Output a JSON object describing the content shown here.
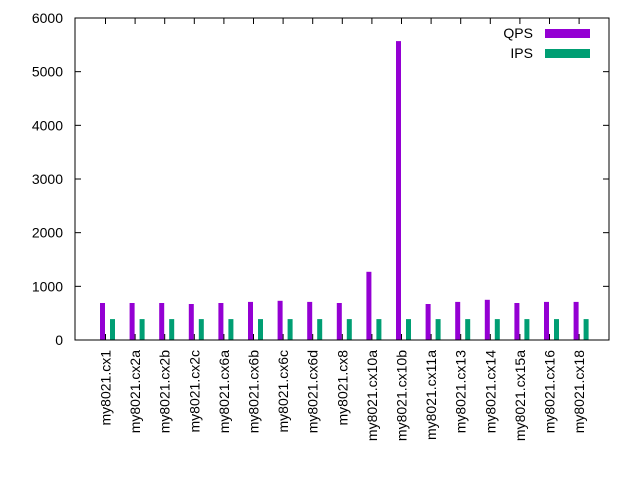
{
  "chart_data": {
    "type": "bar",
    "title": "",
    "xlabel": "",
    "ylabel": "",
    "ylim": [
      0,
      6000
    ],
    "yticks": [
      0,
      1000,
      2000,
      3000,
      4000,
      5000,
      6000
    ],
    "legend_position": "top-right",
    "grid": false,
    "categories": [
      "my8021.cx1",
      "my8021.cx2a",
      "my8021.cx2b",
      "my8021.cx2c",
      "my8021.cx6a",
      "my8021.cx6b",
      "my8021.cx6c",
      "my8021.cx6d",
      "my8021.cx8",
      "my8021.cx10a",
      "my8021.cx10b",
      "my8021.cx11a",
      "my8021.cx13",
      "my8021.cx14",
      "my8021.cx15a",
      "my8021.cx16",
      "my8021.cx18"
    ],
    "series": [
      {
        "name": "QPS",
        "color": "#9400d3",
        "values": [
          690,
          690,
          690,
          670,
          690,
          710,
          730,
          710,
          690,
          1270,
          5570,
          670,
          710,
          750,
          690,
          710,
          710
        ]
      },
      {
        "name": "IPS",
        "color": "#009e73",
        "values": [
          390,
          390,
          390,
          390,
          390,
          390,
          390,
          390,
          390,
          390,
          390,
          390,
          390,
          390,
          390,
          390,
          390
        ]
      }
    ]
  }
}
